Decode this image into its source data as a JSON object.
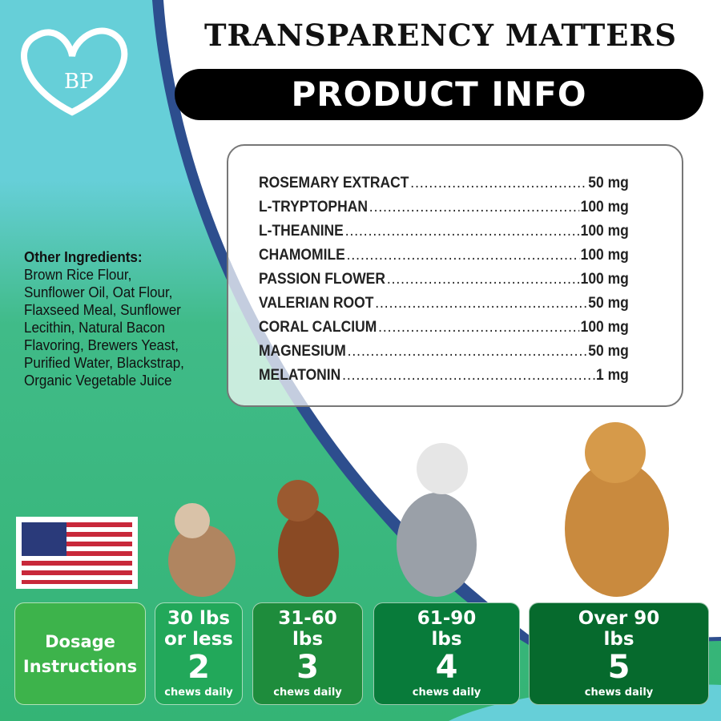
{
  "header": {
    "title": "TRANSPARENCY MATTERS",
    "banner": "PRODUCT INFO"
  },
  "logo": {
    "text": "BP",
    "icon": "heart-cat-dog-logo"
  },
  "ingredients": [
    {
      "name": "ROSEMARY EXTRACT",
      "amount": "50 mg"
    },
    {
      "name": "L-TRYPTOPHAN",
      "amount": "100 mg"
    },
    {
      "name": "L-THEANINE",
      "amount": "100 mg"
    },
    {
      "name": "CHAMOMILE",
      "amount": "100 mg"
    },
    {
      "name": "PASSION FLOWER",
      "amount": "100 mg"
    },
    {
      "name": "VALERIAN ROOT",
      "amount": "50 mg"
    },
    {
      "name": "CORAL CALCIUM",
      "amount": "100 mg"
    },
    {
      "name": "MAGNESIUM",
      "amount": "50 mg"
    },
    {
      "name": "MELATONIN",
      "amount": "1 mg"
    }
  ],
  "other": {
    "title": "Other Ingredients:",
    "text": "Brown Rice Flour, Sunflower Oil, Oat Flour, Flaxseed Meal, Sunflower Lecithin, Natural Bacon Flavoring, Brewers Yeast, Purified Water, Blackstrap, Organic Vegetable Juice"
  },
  "dosage": {
    "label1": "Dosage",
    "label2": "Instructions",
    "tiers": [
      {
        "w1": "30 lbs",
        "w2": "or less",
        "chews": "2",
        "unit": "chews daily",
        "color": "#22a85a"
      },
      {
        "w1": "31-60",
        "w2": "lbs",
        "chews": "3",
        "unit": "chews daily",
        "color": "#1e8c3c"
      },
      {
        "w1": "61-90",
        "w2": "lbs",
        "chews": "4",
        "unit": "chews daily",
        "color": "#087b3a"
      },
      {
        "w1": "Over 90",
        "w2": "lbs",
        "chews": "5",
        "unit": "chews daily",
        "color": "#066a2d"
      }
    ]
  },
  "colors": {
    "teal": "#66cfd8",
    "green": "#3bb878",
    "navy": "#2d4e8e"
  }
}
